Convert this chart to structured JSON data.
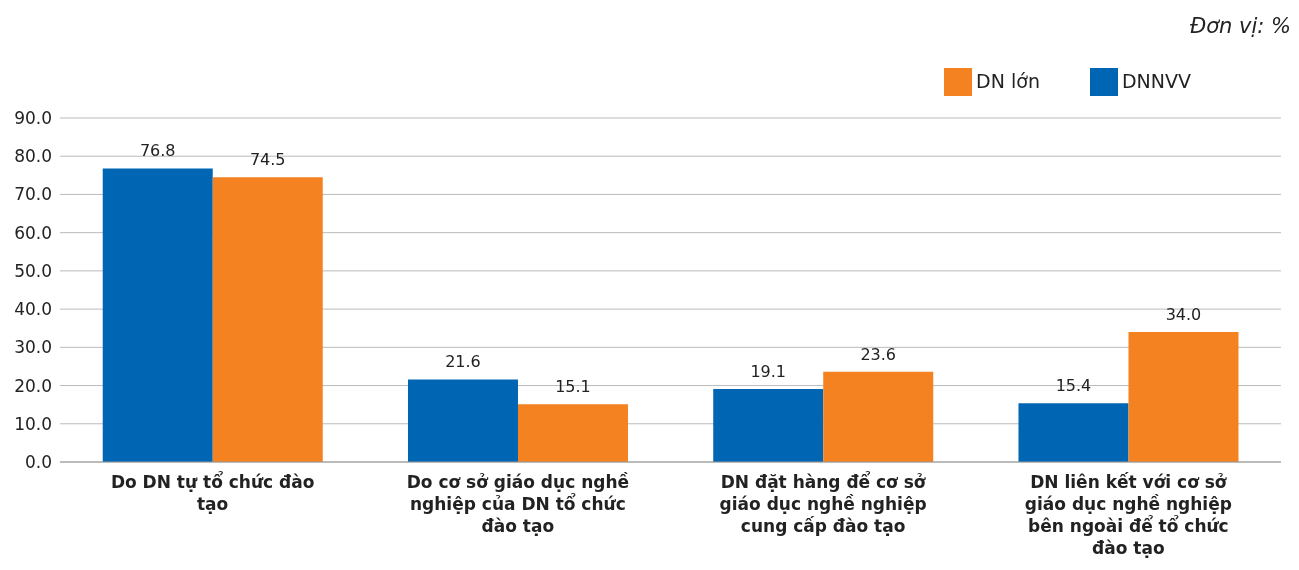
{
  "chart_data": {
    "type": "bar",
    "annotations": [
      "Đơn vị: %"
    ],
    "categories": [
      "Do DN tự tổ chức đào tạo",
      "Do cơ sở giáo dục nghề nghiệp của DN tổ chức đào tạo",
      "DN đặt hàng để cơ sở giáo dục nghề nghiệp cung cấp đào tạo",
      "DN liên kết với cơ sở giáo dục nghề nghiệp bên ngoài để tổ chức đào tạo"
    ],
    "series": [
      {
        "name": "DNNVV",
        "color": "#0066b3",
        "values": [
          76.8,
          21.6,
          19.1,
          15.4
        ],
        "value_labels": [
          "76.8",
          "21.6",
          "19.1",
          "15.4"
        ]
      },
      {
        "name": "DN lớn",
        "color": "#f58220",
        "values": [
          74.5,
          15.1,
          23.6,
          34.0
        ],
        "value_labels": [
          "74.5",
          "15.1",
          "23.6",
          "34.0"
        ]
      }
    ],
    "ylim": [
      0,
      90
    ],
    "yticks": [
      {
        "value": 0,
        "label": "0.0"
      },
      {
        "value": 10,
        "label": "10.0"
      },
      {
        "value": 20,
        "label": "20.0"
      },
      {
        "value": 30,
        "label": "30.0"
      },
      {
        "value": 40,
        "label": "40.0"
      },
      {
        "value": 50,
        "label": "50.0"
      },
      {
        "value": 60,
        "label": "60.0"
      },
      {
        "value": 70,
        "label": "70.0"
      },
      {
        "value": 80,
        "label": "80.0"
      },
      {
        "value": 90,
        "label": "90.0"
      }
    ],
    "grid": "y",
    "legend": "top right"
  }
}
